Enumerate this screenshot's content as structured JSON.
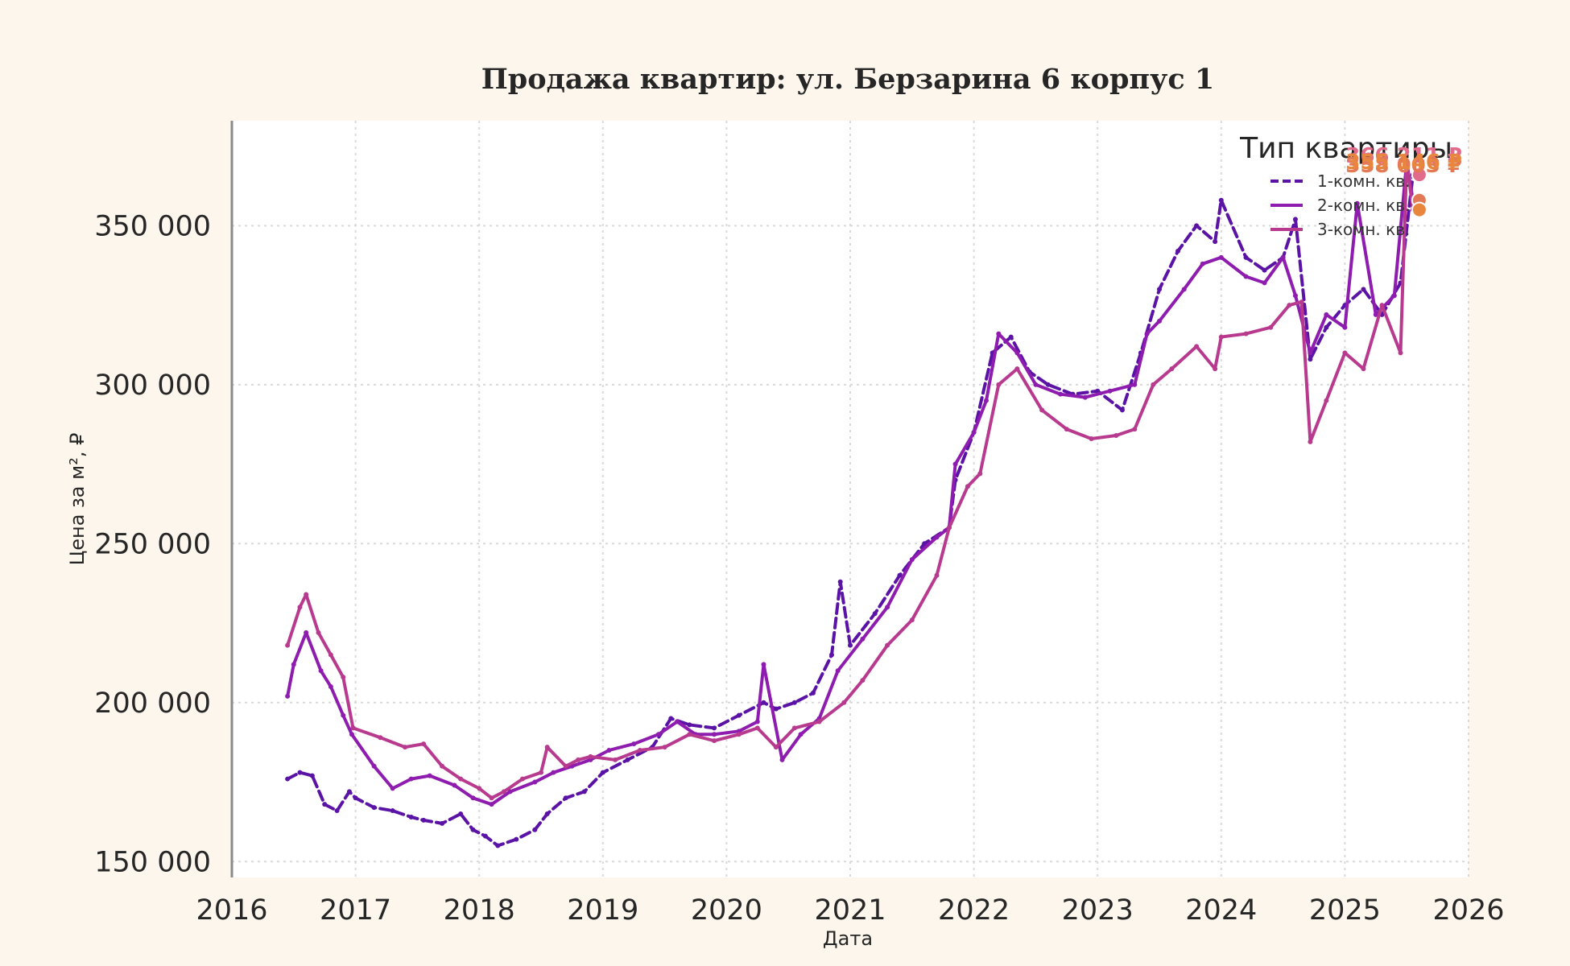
{
  "chart_data": {
    "type": "line",
    "title": "Продажа квартир: ул. Берзарина 6 корпус 1",
    "xlabel": "Дата",
    "ylabel": "Цена за м², ₽",
    "xlim": [
      2016,
      2026
    ],
    "ylim": [
      145000,
      383000
    ],
    "x_ticks": [
      2016,
      2017,
      2018,
      2019,
      2020,
      2021,
      2022,
      2023,
      2024,
      2025,
      2026
    ],
    "x_tick_labels": [
      "2016",
      "2017",
      "2018",
      "2019",
      "2020",
      "2021",
      "2022",
      "2023",
      "2024",
      "2025",
      "2026"
    ],
    "y_ticks": [
      150000,
      200000,
      250000,
      300000,
      350000
    ],
    "y_tick_labels": [
      "150 000",
      "200 000",
      "250 000",
      "300 000",
      "350 000"
    ],
    "grid": true,
    "legend": {
      "title": "Тип квартиры",
      "placement": "top-right"
    },
    "series": [
      {
        "name": "1-комн. кв.",
        "color": "#5b13a6",
        "dash": "dashed",
        "end_label": "366 211 ₽",
        "x": [
          2016.45,
          2016.55,
          2016.65,
          2016.75,
          2016.85,
          2016.95,
          2017.0,
          2017.15,
          2017.3,
          2017.45,
          2017.55,
          2017.7,
          2017.85,
          2017.95,
          2018.05,
          2018.15,
          2018.3,
          2018.45,
          2018.55,
          2018.7,
          2018.85,
          2019.0,
          2019.2,
          2019.4,
          2019.55,
          2019.7,
          2019.9,
          2020.1,
          2020.3,
          2020.4,
          2020.55,
          2020.7,
          2020.85,
          2020.92,
          2021.0,
          2021.2,
          2021.4,
          2021.6,
          2021.8,
          2021.85,
          2022.0,
          2022.15,
          2022.3,
          2022.45,
          2022.6,
          2022.8,
          2023.0,
          2023.2,
          2023.35,
          2023.5,
          2023.65,
          2023.8,
          2023.95,
          2024.0,
          2024.2,
          2024.35,
          2024.5,
          2024.6,
          2024.72,
          2024.85,
          2025.0,
          2025.15,
          2025.3,
          2025.45,
          2025.55
        ],
        "y": [
          176000,
          178000,
          177000,
          168000,
          166000,
          172000,
          170000,
          167000,
          166000,
          164000,
          163000,
          162000,
          165000,
          160000,
          158000,
          155000,
          157000,
          160000,
          165000,
          170000,
          172000,
          178000,
          182000,
          186000,
          195000,
          193000,
          192000,
          196000,
          200000,
          198000,
          200000,
          203000,
          215000,
          238000,
          218000,
          228000,
          240000,
          250000,
          255000,
          270000,
          285000,
          310000,
          315000,
          304000,
          300000,
          297000,
          298000,
          292000,
          310000,
          330000,
          342000,
          350000,
          345000,
          358000,
          340000,
          336000,
          340000,
          352000,
          308000,
          318000,
          325000,
          330000,
          322000,
          332000,
          366000
        ]
      },
      {
        "name": "2-комн. кв.",
        "color": "#8e1cae",
        "dash": "solid",
        "end_label": "358 003 ₽",
        "x": [
          2016.45,
          2016.5,
          2016.6,
          2016.72,
          2016.8,
          2016.9,
          2016.97,
          2017.15,
          2017.3,
          2017.45,
          2017.6,
          2017.8,
          2017.95,
          2018.1,
          2018.25,
          2018.45,
          2018.6,
          2018.75,
          2018.9,
          2019.05,
          2019.25,
          2019.45,
          2019.6,
          2019.75,
          2019.9,
          2020.1,
          2020.25,
          2020.3,
          2020.45,
          2020.6,
          2020.75,
          2020.9,
          2021.1,
          2021.3,
          2021.5,
          2021.7,
          2021.8,
          2021.85,
          2022.0,
          2022.1,
          2022.2,
          2022.35,
          2022.5,
          2022.7,
          2022.9,
          2023.1,
          2023.3,
          2023.4,
          2023.5,
          2023.7,
          2023.85,
          2024.0,
          2024.2,
          2024.35,
          2024.5,
          2024.6,
          2024.72,
          2024.85,
          2025.0,
          2025.1,
          2025.25,
          2025.4,
          2025.5,
          2025.55
        ],
        "y": [
          202000,
          212000,
          222000,
          210000,
          205000,
          196000,
          190000,
          180000,
          173000,
          176000,
          177000,
          174000,
          170000,
          168000,
          172000,
          175000,
          178000,
          180000,
          182000,
          185000,
          187000,
          190000,
          194000,
          190000,
          190000,
          191000,
          194000,
          212000,
          182000,
          190000,
          195000,
          210000,
          220000,
          230000,
          245000,
          252000,
          255000,
          275000,
          285000,
          295000,
          316000,
          310000,
          300000,
          297000,
          296000,
          298000,
          300000,
          316000,
          320000,
          330000,
          338000,
          340000,
          334000,
          332000,
          340000,
          328000,
          310000,
          322000,
          318000,
          357000,
          322000,
          328000,
          370000,
          358000
        ]
      },
      {
        "name": "3-комн. кв.",
        "color": "#b83a8f",
        "dash": "solid",
        "end_label": "355 146 ₽",
        "x": [
          2016.45,
          2016.55,
          2016.6,
          2016.7,
          2016.8,
          2016.9,
          2016.98,
          2017.2,
          2017.4,
          2017.55,
          2017.7,
          2017.85,
          2018.0,
          2018.1,
          2018.2,
          2018.35,
          2018.5,
          2018.55,
          2018.7,
          2018.8,
          2018.9,
          2019.1,
          2019.3,
          2019.5,
          2019.7,
          2019.9,
          2020.1,
          2020.25,
          2020.4,
          2020.55,
          2020.75,
          2020.95,
          2021.1,
          2021.3,
          2021.5,
          2021.7,
          2021.8,
          2021.95,
          2022.05,
          2022.2,
          2022.35,
          2022.55,
          2022.75,
          2022.95,
          2023.15,
          2023.3,
          2023.45,
          2023.6,
          2023.8,
          2023.95,
          2024.0,
          2024.2,
          2024.4,
          2024.55,
          2024.65,
          2024.72,
          2024.85,
          2025.0,
          2025.15,
          2025.3,
          2025.45,
          2025.5,
          2025.55
        ],
        "y": [
          218000,
          230000,
          234000,
          222000,
          215000,
          208000,
          192000,
          189000,
          186000,
          187000,
          180000,
          176000,
          173000,
          170000,
          172000,
          176000,
          178000,
          186000,
          180000,
          182000,
          183000,
          182000,
          185000,
          186000,
          190000,
          188000,
          190000,
          192000,
          186000,
          192000,
          194000,
          200000,
          207000,
          218000,
          226000,
          240000,
          255000,
          268000,
          272000,
          300000,
          305000,
          292000,
          286000,
          283000,
          284000,
          286000,
          300000,
          305000,
          312000,
          305000,
          315000,
          316000,
          318000,
          325000,
          326000,
          282000,
          295000,
          310000,
          305000,
          325000,
          310000,
          370000,
          355000
        ]
      }
    ]
  }
}
